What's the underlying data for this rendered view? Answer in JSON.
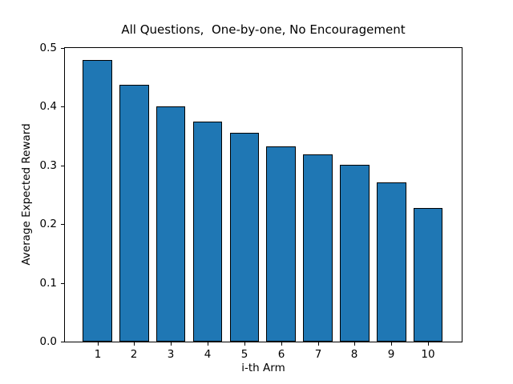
{
  "chart_data": {
    "type": "bar",
    "title": "All Questions,  One-by-one, No Encouragement",
    "xlabel": "i-th Arm",
    "ylabel": "Average Expected Reward",
    "categories": [
      "1",
      "2",
      "3",
      "4",
      "5",
      "6",
      "7",
      "8",
      "9",
      "10"
    ],
    "values": [
      0.48,
      0.437,
      0.4,
      0.375,
      0.355,
      0.333,
      0.319,
      0.301,
      0.271,
      0.227
    ],
    "yticks": [
      0.0,
      0.1,
      0.2,
      0.3,
      0.4,
      0.5
    ],
    "ylim": [
      0.0,
      0.5
    ],
    "bar_color": "#1f77b4",
    "bar_edge_color": "#000000",
    "grid": false,
    "legend_position": "none"
  }
}
